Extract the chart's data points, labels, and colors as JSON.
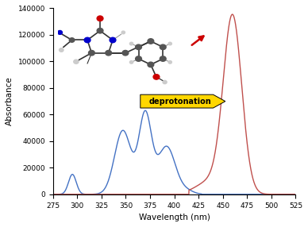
{
  "xlabel": "Wavelength (nm)",
  "ylabel": "Absorbance",
  "xlim": [
    275,
    525
  ],
  "ylim": [
    0,
    140000
  ],
  "yticks": [
    0,
    20000,
    40000,
    60000,
    80000,
    100000,
    120000,
    140000
  ],
  "xticks": [
    275,
    300,
    325,
    350,
    375,
    400,
    425,
    450,
    475,
    500,
    525
  ],
  "blue_color": "#4472C4",
  "red_color": "#C0504D",
  "arrow_fill": "#FFD700",
  "arrow_text": "deprotonation",
  "red_arrow_color": "#CC0000",
  "blue_peaks": [
    {
      "mu": 295,
      "sigma": 4.0,
      "A": 15000
    },
    {
      "mu": 347,
      "sigma": 8.5,
      "A": 48000
    },
    {
      "mu": 370,
      "sigma": 6.5,
      "A": 60000
    },
    {
      "mu": 392,
      "sigma": 9,
      "A": 36000
    },
    {
      "mu": 413,
      "sigma": 7,
      "A": 2500
    }
  ],
  "red_peaks": [
    {
      "mu": 460,
      "sigma": 9.5,
      "A": 132000
    },
    {
      "mu": 438,
      "sigma": 15,
      "A": 10000
    }
  ],
  "blue_xmin": 279,
  "blue_xmax": 428,
  "red_xmin": 415,
  "red_xmax": 530,
  "mol_atom_color": "#555555",
  "mol_N_color": "#0000CC",
  "mol_O_color": "#CC0000",
  "mol_H_color": "#cccccc",
  "figsize": [
    3.88,
    2.86
  ],
  "dpi": 100
}
